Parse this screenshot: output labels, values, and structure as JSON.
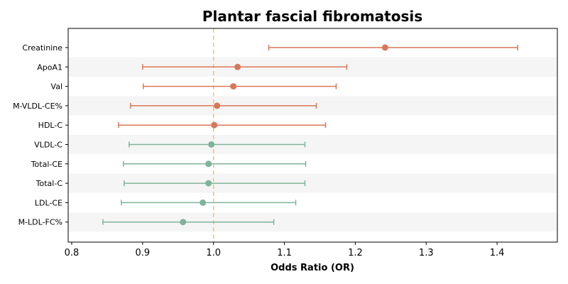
{
  "chart_data": {
    "type": "scatter",
    "subtype": "forest-plot",
    "title": "Plantar fascial fibromatosis",
    "xlabel": "Odds Ratio (OR)",
    "ylabel": "",
    "xlim": [
      0.795,
      1.485
    ],
    "xticks": [
      0.8,
      0.9,
      1.0,
      1.1,
      1.2,
      1.3,
      1.4
    ],
    "xtick_labels": [
      "0.8",
      "0.9",
      "1.0",
      "1.1",
      "1.2",
      "1.3",
      "1.4"
    ],
    "reference_line": 1.0,
    "grid": false,
    "colors": {
      "risk": "#d9775b",
      "protective": "#7fb39b",
      "reference": "#f0c27b",
      "band": "#f5f5f5"
    },
    "rows": [
      {
        "label": "Creatinine",
        "or": 1.242,
        "lower": 1.078,
        "upper": 1.429,
        "group": "risk"
      },
      {
        "label": "ApoA1",
        "or": 1.034,
        "lower": 0.9,
        "upper": 1.188,
        "group": "risk"
      },
      {
        "label": "Val",
        "or": 1.028,
        "lower": 0.901,
        "upper": 1.173,
        "group": "risk"
      },
      {
        "label": "M-VLDL-CE%",
        "or": 1.005,
        "lower": 0.883,
        "upper": 1.145,
        "group": "risk"
      },
      {
        "label": "HDL-C",
        "or": 1.001,
        "lower": 0.866,
        "upper": 1.158,
        "group": "risk"
      },
      {
        "label": "VLDL-C",
        "or": 0.997,
        "lower": 0.881,
        "upper": 1.129,
        "group": "protective"
      },
      {
        "label": "Total-CE",
        "or": 0.993,
        "lower": 0.873,
        "upper": 1.13,
        "group": "protective"
      },
      {
        "label": "Total-C",
        "or": 0.993,
        "lower": 0.874,
        "upper": 1.129,
        "group": "protective"
      },
      {
        "label": "LDL-CE",
        "or": 0.985,
        "lower": 0.87,
        "upper": 1.116,
        "group": "protective"
      },
      {
        "label": "M-LDL-FC%",
        "or": 0.957,
        "lower": 0.844,
        "upper": 1.085,
        "group": "protective"
      }
    ]
  }
}
